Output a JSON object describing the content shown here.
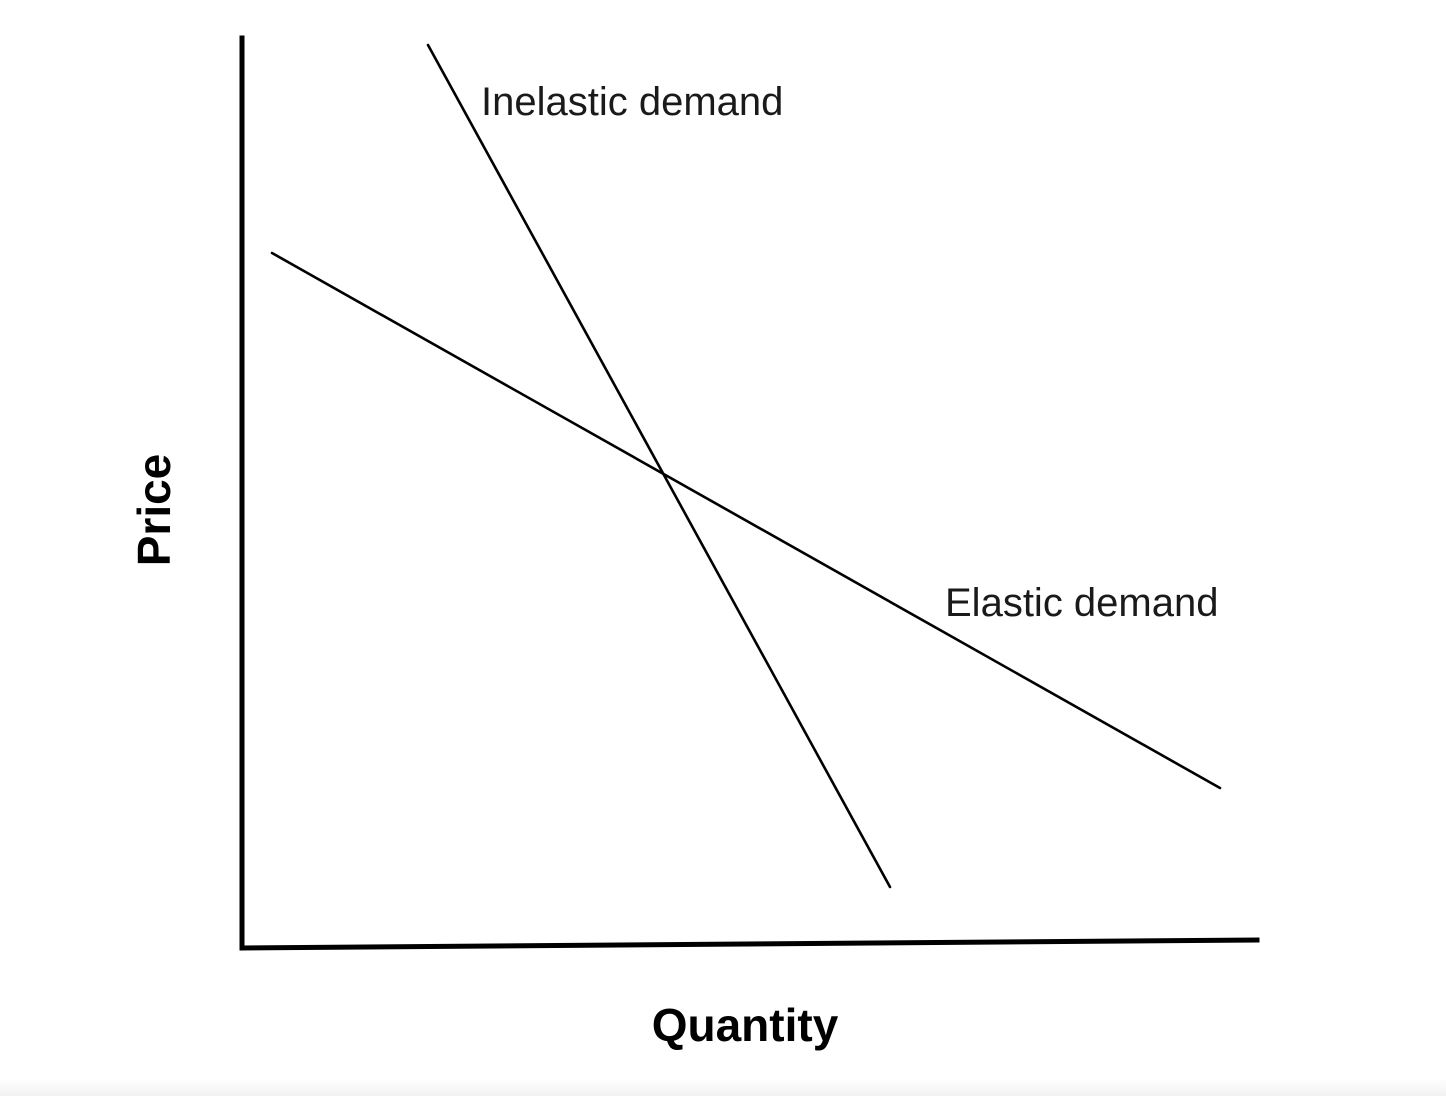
{
  "diagram": {
    "x_axis_label": "Quantity",
    "y_axis_label": "Price",
    "curves": [
      {
        "id": "inelastic",
        "label": "Inelastic demand",
        "description": "steep downward-sloping line"
      },
      {
        "id": "elastic",
        "label": "Elastic demand",
        "description": "flat downward-sloping line"
      }
    ],
    "line_color": "#000000"
  }
}
